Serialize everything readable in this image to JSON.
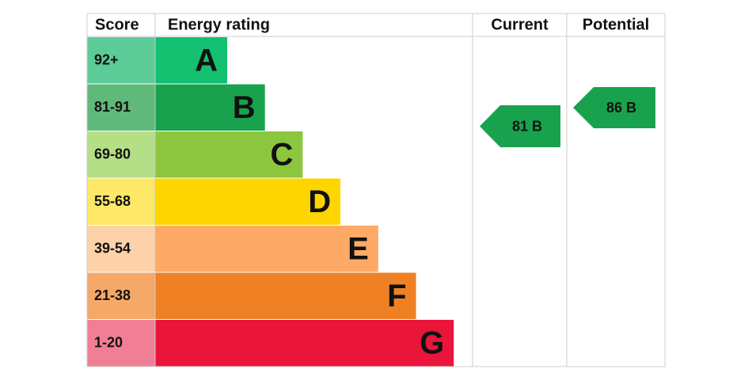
{
  "table": {
    "headers": [
      "Score",
      "Energy rating",
      "Current",
      "Potential"
    ],
    "rows": [
      {
        "score": "92+",
        "rating": "A",
        "score_color": "#5ccb97",
        "bar_color": "#12c070"
      },
      {
        "score": "81-91",
        "rating": "B",
        "score_color": "#5fb97a",
        "bar_color": "#19a24e"
      },
      {
        "score": "69-80",
        "rating": "C",
        "score_color": "#b5df86",
        "bar_color": "#8cc63f"
      },
      {
        "score": "55-68",
        "rating": "D",
        "score_color": "#fde867",
        "bar_color": "#ffd500"
      },
      {
        "score": "39-54",
        "rating": "E",
        "score_color": "#fdd1a9",
        "bar_color": "#fcaa65"
      },
      {
        "score": "21-38",
        "rating": "F",
        "score_color": "#f5a867",
        "bar_color": "#ef8023"
      },
      {
        "score": "1-20",
        "rating": "G",
        "score_color": "#f07f96",
        "bar_color": "#e9153b"
      }
    ]
  },
  "current": {
    "label": "81 B",
    "color": "#19a24e"
  },
  "potential": {
    "label": "86 B",
    "color": "#19a24e"
  }
}
